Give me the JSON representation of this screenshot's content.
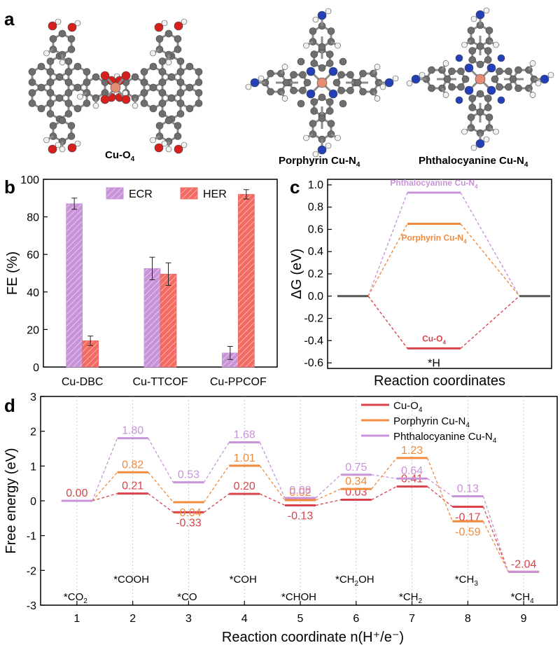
{
  "panel_a": {
    "letter": "a",
    "molecules": [
      {
        "caption": "Cu-O",
        "sub": "4"
      },
      {
        "caption": "Porphyrin Cu-N",
        "sub": "4"
      },
      {
        "caption": "Phthalocyanine Cu-N",
        "sub": "4"
      }
    ],
    "atom_colors": {
      "carbon": "#6e6e6e",
      "oxygen": "#d6201e",
      "nitrogen": "#2340b8",
      "hydrogen": "#f2f2f2",
      "copper": "#e58c74"
    }
  },
  "chart_data": [
    {
      "panel": "b",
      "type": "bar",
      "ylabel": "FE (%)",
      "ylim": [
        0,
        100
      ],
      "yticks": [
        "0",
        "20",
        "40",
        "60",
        "80",
        "100"
      ],
      "categories": [
        "Cu-DBC",
        "Cu-TTCOF",
        "Cu-PPCOF"
      ],
      "series": [
        {
          "name": "ECR",
          "color": "#c993d8",
          "values": [
            87,
            52.5,
            7.5
          ],
          "errors": [
            3,
            6,
            3.5
          ]
        },
        {
          "name": "HER",
          "color": "#f26a62",
          "values": [
            14,
            49.5,
            92
          ],
          "errors": [
            2.5,
            6,
            2.5
          ]
        }
      ],
      "legend_position": "top"
    },
    {
      "panel": "c",
      "type": "line",
      "xlabel": "Reaction coordinates",
      "ylabel": "ΔG (eV)",
      "ylim": [
        -0.65,
        1.05
      ],
      "yticks": [
        "-0.6",
        "-0.4",
        "-0.2",
        "0.0",
        "0.2",
        "0.4",
        "0.6",
        "0.8",
        "1.0"
      ],
      "state_label": "*H",
      "series": [
        {
          "name": "Phthalocyanine Cu-N",
          "sub": "4",
          "color": "#c993d8",
          "value": 0.93
        },
        {
          "name": "Porphyrin Cu-N",
          "sub": "4",
          "color": "#f08a3c",
          "value": 0.65
        },
        {
          "name": "Cu-O",
          "sub": "4",
          "color": "#d9434a",
          "value": -0.47
        }
      ]
    },
    {
      "panel": "d",
      "type": "line",
      "xlabel": "Reaction coordinate n(H⁺/e⁻)",
      "ylabel": "Free energy (eV)",
      "ylim": [
        -3,
        3
      ],
      "yticks": [
        "-3",
        "-2",
        "-1",
        "0",
        "1",
        "2",
        "3"
      ],
      "x": [
        1,
        2,
        3,
        4,
        5,
        6,
        7,
        8,
        9
      ],
      "xticks": [
        "1",
        "2",
        "3",
        "4",
        "5",
        "6",
        "7",
        "8",
        "9"
      ],
      "intermediates": [
        {
          "main": "*CO",
          "sub": "2",
          "after": ""
        },
        {
          "main": "*COOH",
          "sub": "",
          "after": ""
        },
        {
          "main": "*CO",
          "sub": "",
          "after": ""
        },
        {
          "main": "*COH",
          "sub": "",
          "after": ""
        },
        {
          "main": "*CHOH",
          "sub": "",
          "after": ""
        },
        {
          "main": "*CH",
          "sub": "2",
          "after": "OH"
        },
        {
          "main": "*CH",
          "sub": "2",
          "after": ""
        },
        {
          "main": "*CH",
          "sub": "3",
          "after": ""
        },
        {
          "main": "*CH",
          "sub": "4",
          "after": ""
        }
      ],
      "series": [
        {
          "name": "Cu-O",
          "sub": "4",
          "color": "#d9434a",
          "values": [
            0.0,
            0.21,
            -0.33,
            0.2,
            -0.13,
            0.03,
            0.41,
            -0.17,
            -2.04
          ],
          "labels": [
            "0.00",
            "0.21",
            "-0.33",
            "0.20",
            "-0.13",
            "0.03",
            "0.41",
            "-0.17",
            "-2.04"
          ]
        },
        {
          "name": "Porphyrin Cu-N",
          "sub": "4",
          "color": "#f08a3c",
          "values": [
            0.0,
            0.82,
            -0.04,
            1.01,
            0.02,
            0.34,
            1.23,
            -0.59,
            -2.04
          ],
          "labels": [
            "",
            "0.82",
            "-0.04",
            "1.01",
            "0.02",
            "0.34",
            "1.23",
            "-0.59",
            ""
          ]
        },
        {
          "name": "Phthalocyanine Cu-N",
          "sub": "4",
          "color": "#c993d8",
          "values": [
            0.0,
            1.8,
            0.53,
            1.68,
            0.08,
            0.75,
            0.64,
            0.13,
            -2.04
          ],
          "labels": [
            "",
            "1.80",
            "0.53",
            "1.68",
            "0.08",
            "0.75",
            "0.64",
            "0.13",
            ""
          ]
        }
      ],
      "legend_position": "top-right"
    }
  ]
}
